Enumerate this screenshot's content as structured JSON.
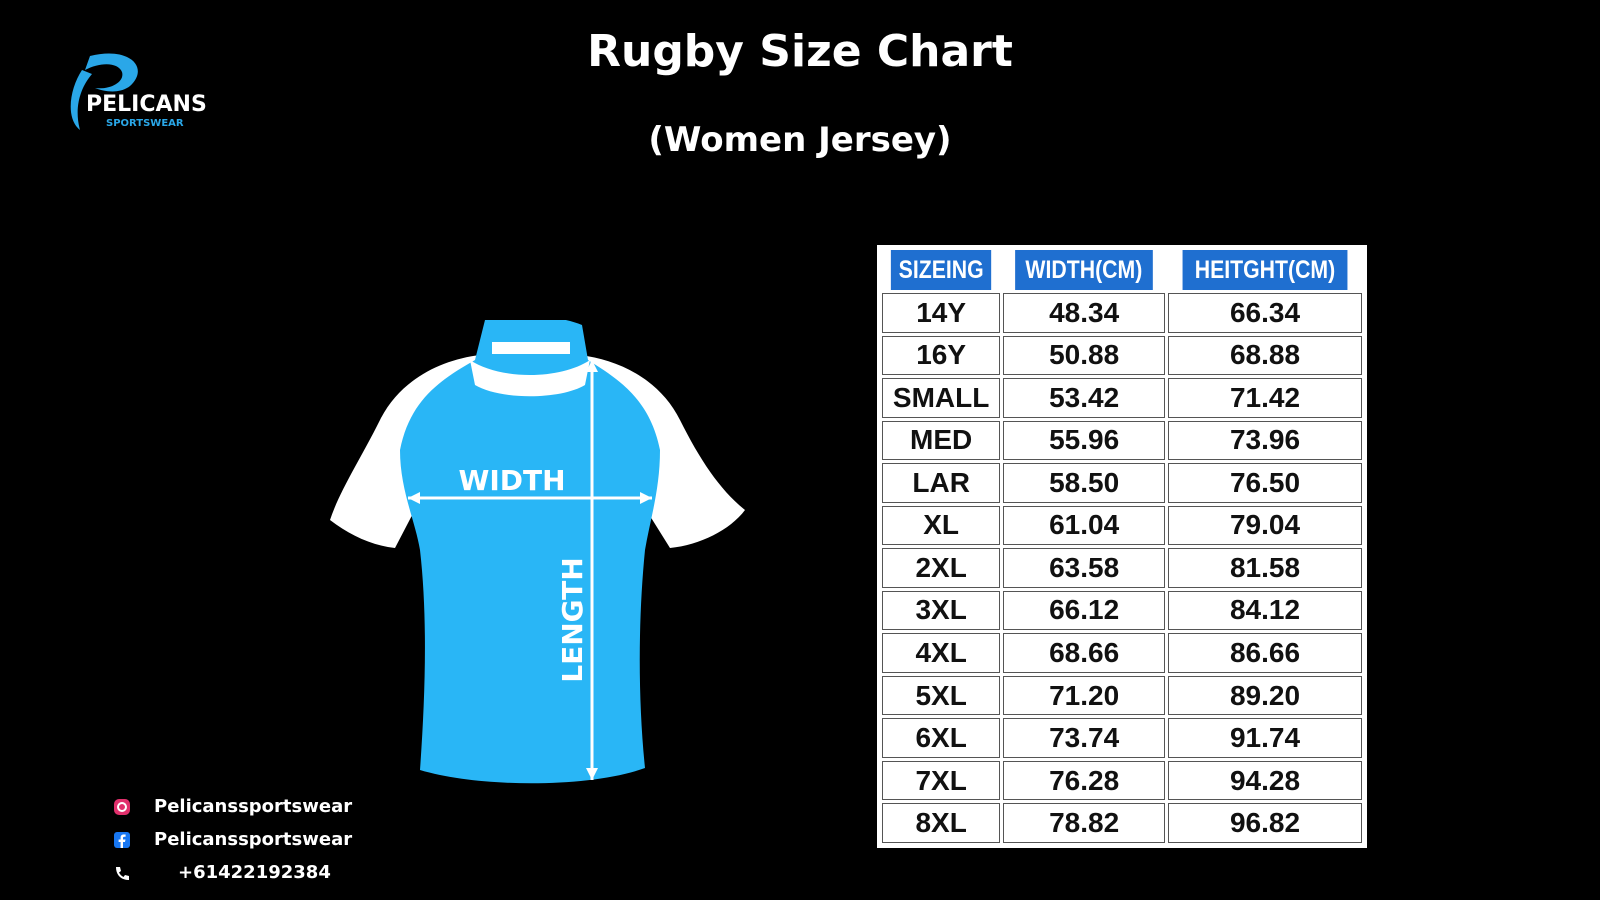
{
  "logo": {
    "name": "PELICANS",
    "sub": "SPORTSWEAR"
  },
  "header": {
    "title": "Rugby Size Chart",
    "subtitle": "(Women Jersey)"
  },
  "diagram": {
    "width_label": "WIDTH",
    "length_label": "LENGTH"
  },
  "table": {
    "columns": [
      "SIZEING",
      "WIDTH(CM)",
      "HEITGHT(CM)"
    ],
    "rows": [
      [
        "14Y",
        "48.34",
        "66.34"
      ],
      [
        "16Y",
        "50.88",
        "68.88"
      ],
      [
        "SMALL",
        "53.42",
        "71.42"
      ],
      [
        "MED",
        "55.96",
        "73.96"
      ],
      [
        "LAR",
        "58.50",
        "76.50"
      ],
      [
        "XL",
        "61.04",
        "79.04"
      ],
      [
        "2XL",
        "63.58",
        "81.58"
      ],
      [
        "3XL",
        "66.12",
        "84.12"
      ],
      [
        "4XL",
        "68.66",
        "86.66"
      ],
      [
        "5XL",
        "71.20",
        "89.20"
      ],
      [
        "6XL",
        "73.74",
        "91.74"
      ],
      [
        "7XL",
        "76.28",
        "94.28"
      ],
      [
        "8XL",
        "78.82",
        "96.82"
      ]
    ]
  },
  "contacts": [
    "Pelicanssportswear",
    "Pelicanssportswear",
    "+61422192384"
  ]
}
